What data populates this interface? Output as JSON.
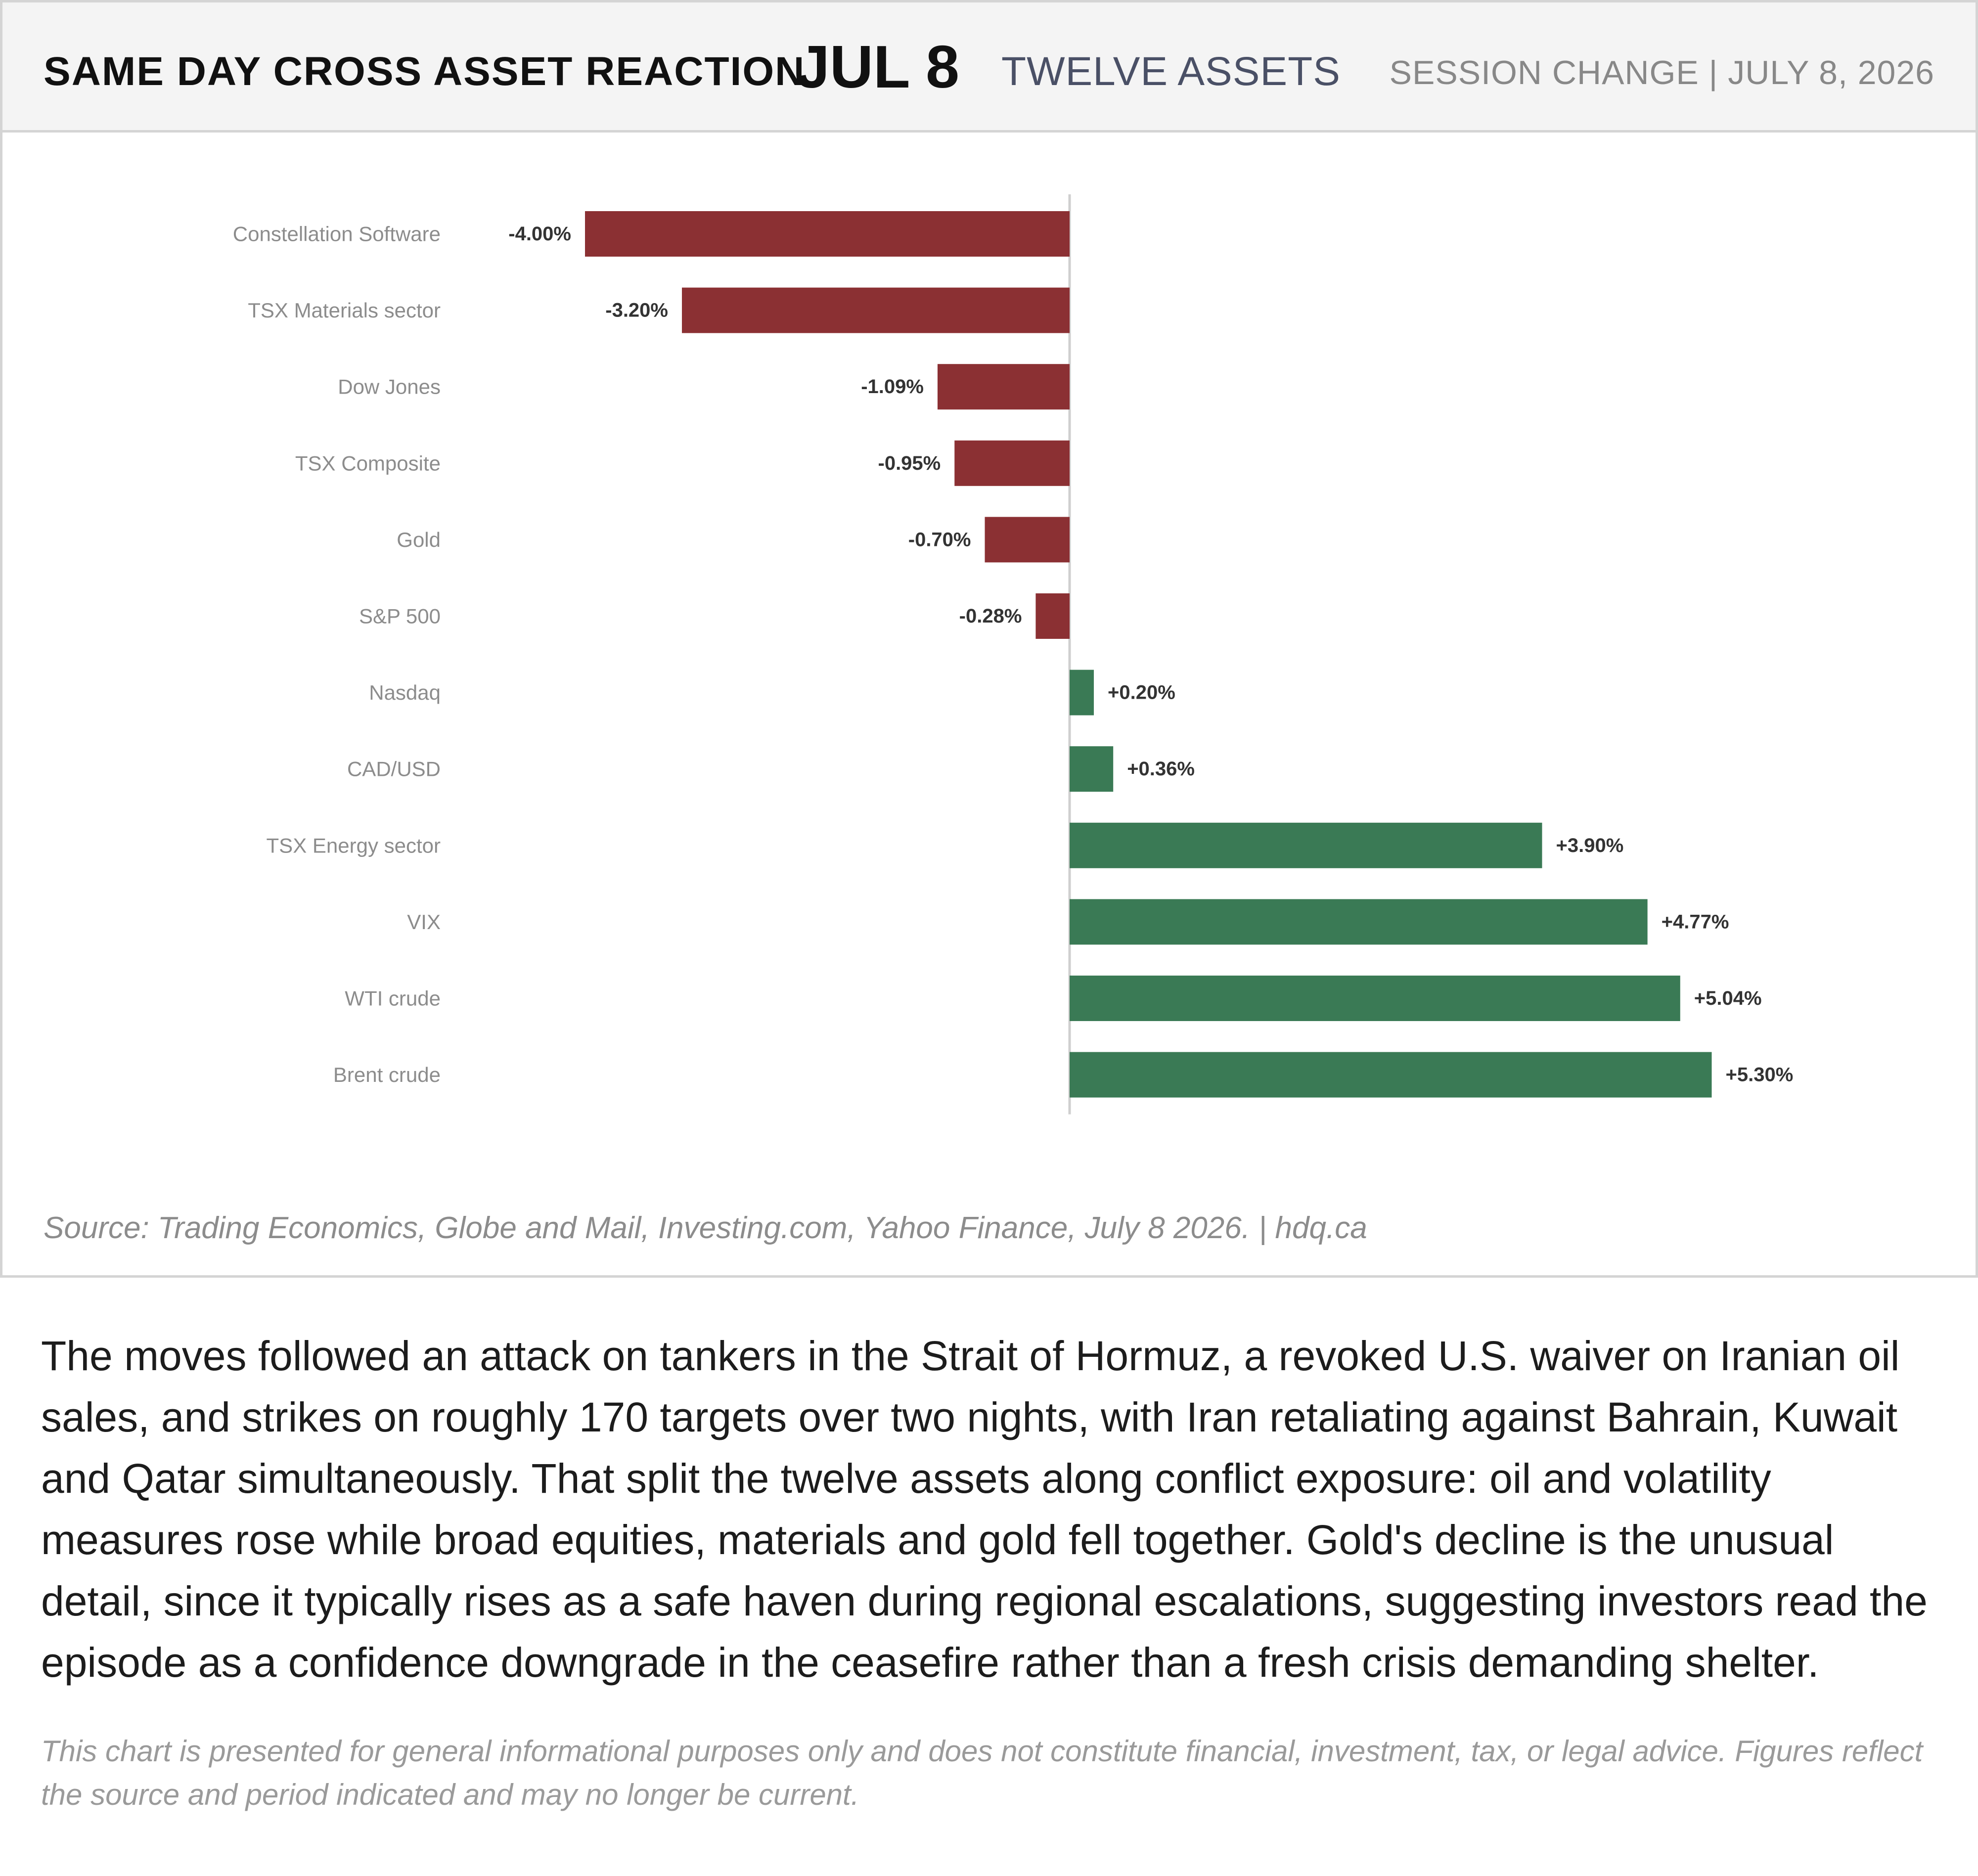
{
  "header": {
    "title": "SAME DAY CROSS ASSET REACTION",
    "date": "JUL 8",
    "subtitle": "TWELVE ASSETS",
    "right_label": "SESSION CHANGE  |  JULY 8, 2026"
  },
  "colors": {
    "negative": "#8b3033",
    "positive": "#3a7a55",
    "category_label": "#8c8c8c",
    "value_label": "#333333",
    "zero_line": "#cfcfcf"
  },
  "chart_data": {
    "type": "bar",
    "orientation": "horizontal",
    "categories": [
      "Constellation Software",
      "TSX Materials sector",
      "Dow Jones",
      "TSX Composite",
      "Gold",
      "S&P 500",
      "Nasdaq",
      "CAD/USD",
      "TSX Energy sector",
      "VIX",
      "WTI crude",
      "Brent crude"
    ],
    "values": [
      -4.0,
      -3.2,
      -1.09,
      -0.95,
      -0.7,
      -0.28,
      0.2,
      0.36,
      3.9,
      4.77,
      5.04,
      5.3
    ],
    "value_labels": [
      "-4.00%",
      "-3.20%",
      "-1.09%",
      "-0.95%",
      "-0.70%",
      "-0.28%",
      "+0.20%",
      "+0.36%",
      "+3.90%",
      "+4.77%",
      "+5.04%",
      "+5.30%"
    ],
    "unit": "%",
    "title": "",
    "xlabel": "",
    "ylabel": "",
    "xlim": [
      -4.0,
      5.3
    ],
    "grid": false,
    "legend": "none"
  },
  "source": "Source: Trading Economics, Globe and Mail, Investing.com, Yahoo Finance, July 8 2026.  |  hdq.ca",
  "body_text": "The moves followed an attack on tankers in the Strait of Hormuz, a revoked U.S. waiver on Iranian oil sales, and strikes on roughly 170 targets over two nights, with Iran retaliating against Bahrain, Kuwait and Qatar simultaneously. That split the twelve assets along conflict exposure: oil and volatility measures rose while broad equities, materials and gold fell together. Gold's decline is the unusual detail, since it typically rises as a safe haven during regional escalations, suggesting investors read the episode as a confidence downgrade in the ceasefire rather than a fresh crisis demanding shelter.",
  "disclaimer": "This chart is presented for general informational purposes only and does not constitute financial, investment, tax, or legal advice. Figures reflect the source and period indicated and may no longer be current."
}
